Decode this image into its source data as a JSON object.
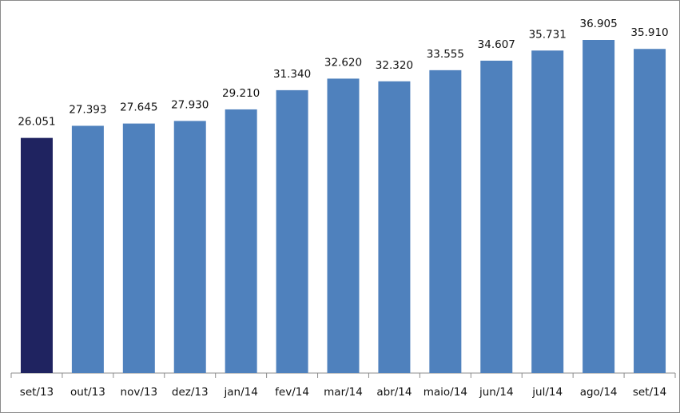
{
  "chart_data": {
    "type": "bar",
    "categories": [
      "set/13",
      "out/13",
      "nov/13",
      "dez/13",
      "jan/14",
      "fev/14",
      "mar/14",
      "abr/14",
      "maio/14",
      "jun/14",
      "jul/14",
      "ago/14",
      "set/14"
    ],
    "values": [
      26051,
      27393,
      27645,
      27930,
      29210,
      31340,
      32620,
      32320,
      33555,
      34607,
      35731,
      36905,
      35910
    ],
    "value_labels": [
      "26.051",
      "27.393",
      "27.645",
      "27.930",
      "29.210",
      "31.340",
      "32.620",
      "32.320",
      "33.555",
      "34.607",
      "35.731",
      "36.905",
      "35.910"
    ],
    "colors": [
      "#1f2360",
      "#4f81bd",
      "#4f81bd",
      "#4f81bd",
      "#4f81bd",
      "#4f81bd",
      "#4f81bd",
      "#4f81bd",
      "#4f81bd",
      "#4f81bd",
      "#4f81bd",
      "#4f81bd",
      "#4f81bd"
    ]
  }
}
